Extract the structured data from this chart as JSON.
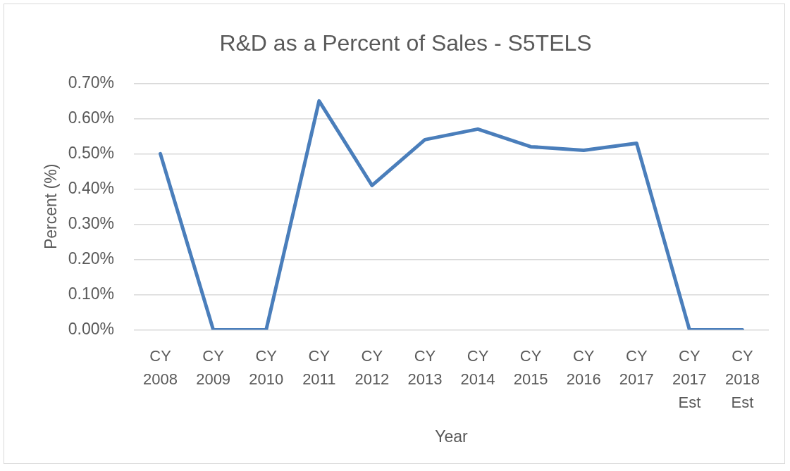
{
  "chart_data": {
    "type": "line",
    "title": "R&D as a Percent of Sales - S5TELS",
    "xlabel": "Year",
    "ylabel": "Percent (%)",
    "categories": [
      "CY 2008",
      "CY 2009",
      "CY 2010",
      "CY 2011",
      "CY 2012",
      "CY 2013",
      "CY 2014",
      "CY 2015",
      "CY 2016",
      "CY 2017",
      "CY 2017 Est",
      "CY 2018 Est"
    ],
    "series": [
      {
        "color": "#4a7ebb",
        "values": [
          0.5,
          0,
          0,
          0.65,
          0.41,
          0.54,
          0.57,
          0.52,
          0.51,
          0.53,
          0,
          0
        ]
      }
    ],
    "ylim": [
      0,
      0.7
    ],
    "yticks": [
      {
        "value": 0,
        "label": "0.00%"
      },
      {
        "value": 0.1,
        "label": "0.10%"
      },
      {
        "value": 0.2,
        "label": "0.20%"
      },
      {
        "value": 0.3,
        "label": "0.30%"
      },
      {
        "value": 0.4,
        "label": "0.40%"
      },
      {
        "value": 0.5,
        "label": "0.50%"
      },
      {
        "value": 0.6,
        "label": "0.60%"
      },
      {
        "value": 0.7,
        "label": "0.70%"
      }
    ],
    "grid": "y",
    "marker": "none",
    "line_style": "solid"
  }
}
